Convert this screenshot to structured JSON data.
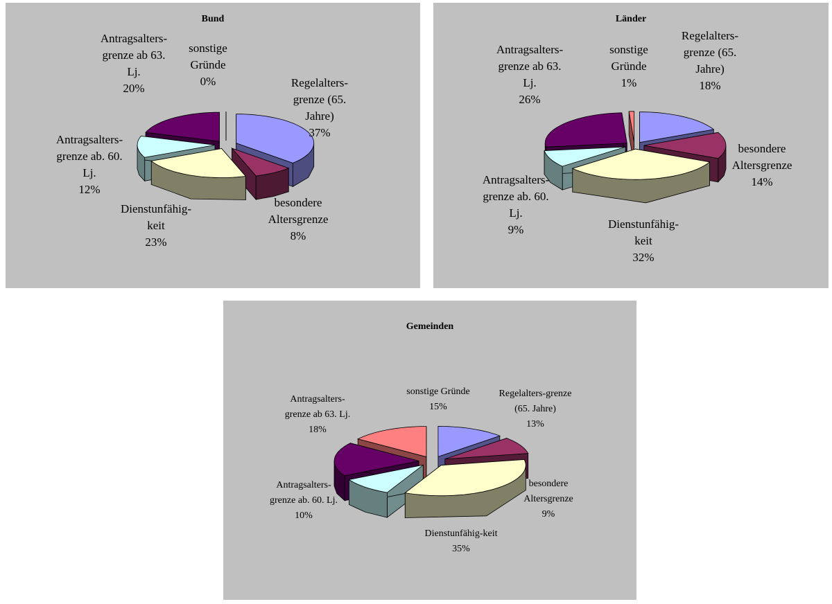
{
  "chart_data": [
    {
      "type": "pie",
      "title": "Bund",
      "slices": [
        {
          "label": "Regelalters-grenze (65. Jahre)",
          "value": 37,
          "pct": "37%"
        },
        {
          "label": "besondere Altersgrenze",
          "value": 8,
          "pct": "8%"
        },
        {
          "label": "Dienstunfähig-keit",
          "value": 23,
          "pct": "23%"
        },
        {
          "label": "Antragsalters-grenze ab. 60. Lj.",
          "value": 12,
          "pct": "12%"
        },
        {
          "label": "Antragsalters-grenze ab 63. Lj.",
          "value": 20,
          "pct": "20%"
        },
        {
          "label": "sonstige Gründe",
          "value": 0,
          "pct": "0%"
        }
      ]
    },
    {
      "type": "pie",
      "title": "Länder",
      "slices": [
        {
          "label": "Regelalters-grenze (65. Jahre)",
          "value": 18,
          "pct": "18%"
        },
        {
          "label": "besondere Altersgrenze",
          "value": 14,
          "pct": "14%"
        },
        {
          "label": "Dienstunfähig-keit",
          "value": 32,
          "pct": "32%"
        },
        {
          "label": "Antragsalters-grenze ab. 60. Lj.",
          "value": 9,
          "pct": "9%"
        },
        {
          "label": "Antragsalters-grenze ab 63. Lj.",
          "value": 26,
          "pct": "26%"
        },
        {
          "label": "sonstige Gründe",
          "value": 1,
          "pct": "1%"
        }
      ]
    },
    {
      "type": "pie",
      "title": "Gemeinden",
      "slices": [
        {
          "label": "Regelalters-grenze (65. Jahre)",
          "value": 13,
          "pct": "13%"
        },
        {
          "label": "besondere Altersgrenze",
          "value": 9,
          "pct": "9%"
        },
        {
          "label": "Dienstunfähig-keit",
          "value": 35,
          "pct": "35%"
        },
        {
          "label": "Antragsalters-grenze ab. 60. Lj.",
          "value": 10,
          "pct": "10%"
        },
        {
          "label": "Antragsalters-grenze ab 63. Lj.",
          "value": 18,
          "pct": "18%"
        },
        {
          "label": "sonstige Gründe",
          "value": 15,
          "pct": "15%"
        }
      ]
    }
  ],
  "colors": [
    "#9999ff",
    "#993366",
    "#ffffcc",
    "#ccffff",
    "#660066",
    "#ff8080"
  ]
}
